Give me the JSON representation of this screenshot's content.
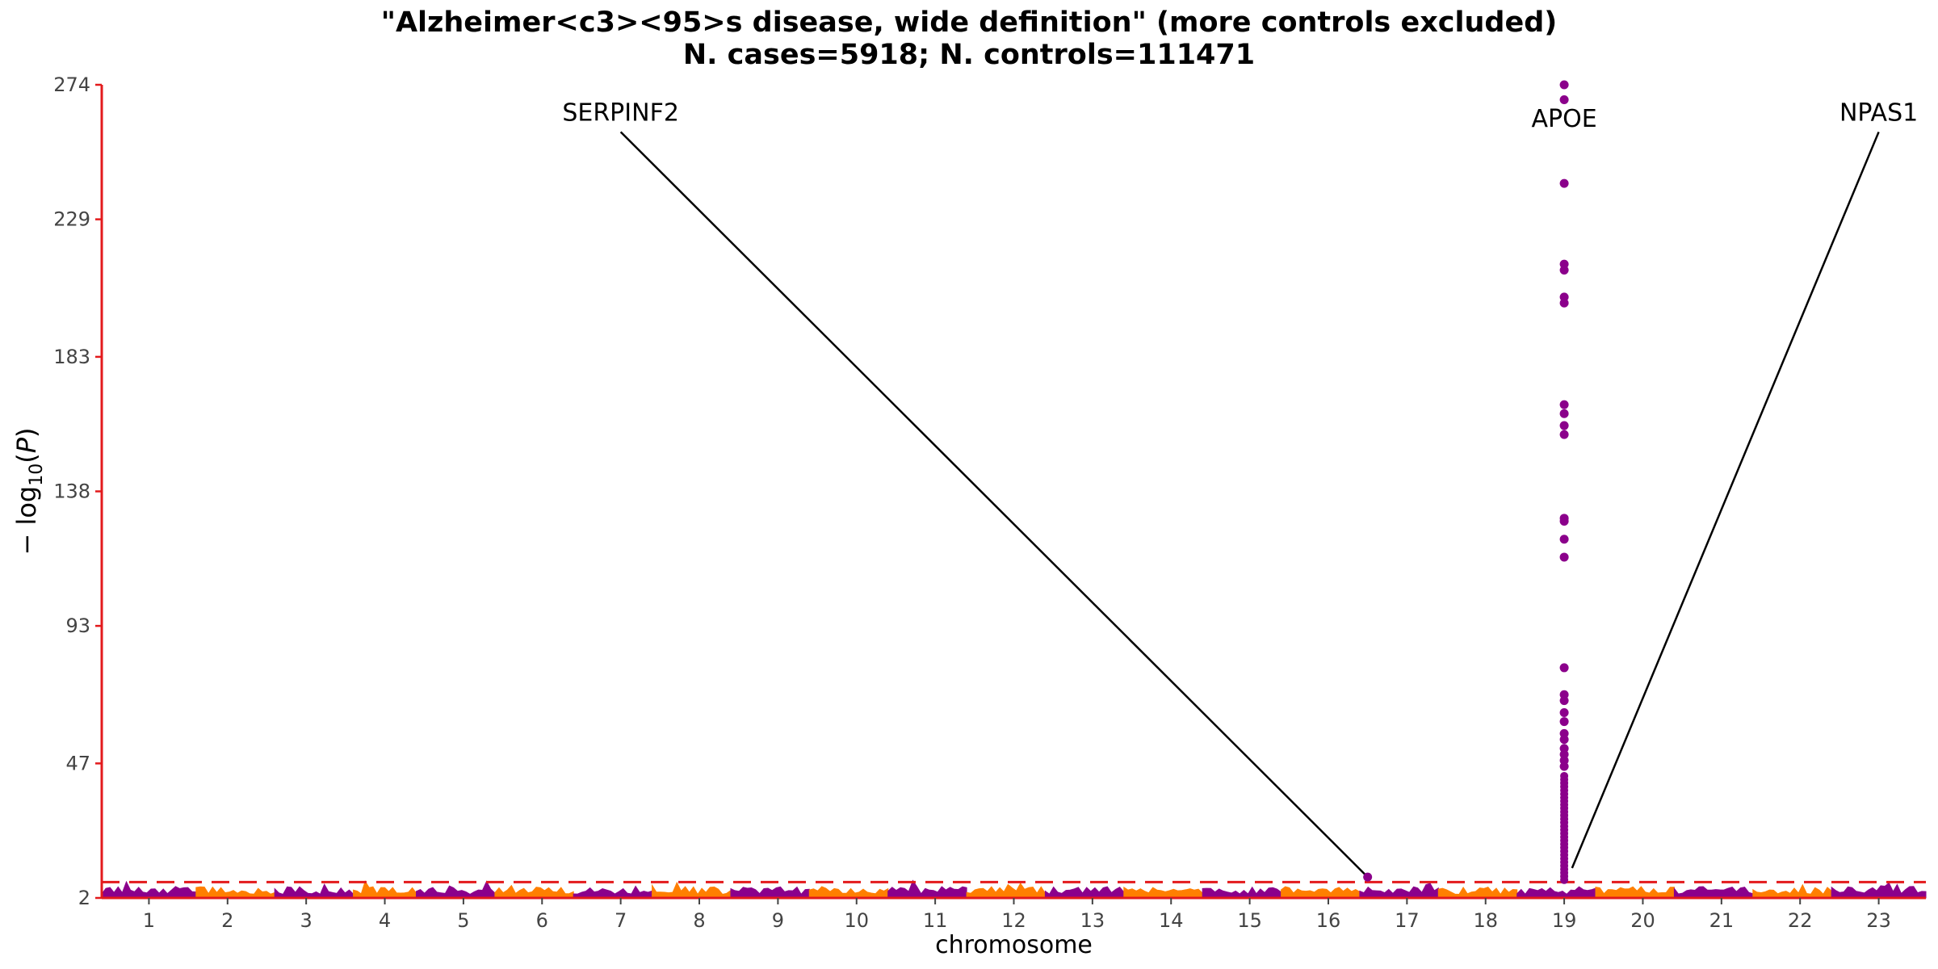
{
  "chart_data": {
    "type": "scatter",
    "title": "\"Alzheimer<c3><95>s disease, wide definition\" (more controls excluded)",
    "subtitle": "N. cases=5918; N. controls=111471",
    "xlabel": "chromosome",
    "ylabel": "−log10(P)",
    "ylabel_parts": {
      "prefix": "− log",
      "sub": "10",
      "open": "(",
      "var": "P",
      "close": ")"
    },
    "y_ticks": [
      "2",
      "47",
      "93",
      "138",
      "183",
      "229",
      "274"
    ],
    "ylim": [
      2,
      274
    ],
    "x_tick_labels": [
      "1",
      "2",
      "3",
      "4",
      "5",
      "6",
      "7",
      "8",
      "9",
      "10",
      "11",
      "12",
      "13",
      "14",
      "15",
      "16",
      "17",
      "18",
      "19",
      "20",
      "21",
      "22",
      "23"
    ],
    "chromosome_x": [
      1,
      2,
      3,
      4,
      5,
      6,
      7,
      8,
      9,
      10,
      11,
      12,
      13,
      14,
      15,
      16,
      17,
      18,
      19,
      20,
      21,
      22,
      23
    ],
    "chromosome_span": [
      [
        0.4,
        1.6
      ],
      [
        1.6,
        2.6
      ],
      [
        2.6,
        3.6
      ],
      [
        3.6,
        4.4
      ],
      [
        4.4,
        5.4
      ],
      [
        5.4,
        6.4
      ],
      [
        6.4,
        7.4
      ],
      [
        7.4,
        8.4
      ],
      [
        8.4,
        9.4
      ],
      [
        9.4,
        10.4
      ],
      [
        10.4,
        11.4
      ],
      [
        11.4,
        12.4
      ],
      [
        12.4,
        13.4
      ],
      [
        13.4,
        14.4
      ],
      [
        14.4,
        15.4
      ],
      [
        15.4,
        16.4
      ],
      [
        16.4,
        17.4
      ],
      [
        17.4,
        18.4
      ],
      [
        18.4,
        19.4
      ],
      [
        19.4,
        20.4
      ],
      [
        20.4,
        21.4
      ],
      [
        21.4,
        22.4
      ],
      [
        22.4,
        23.6
      ]
    ],
    "significance_threshold": 7.3,
    "colors": {
      "odd": "#8B008B",
      "even": "#FF7F00",
      "threshold": "#E31A1C",
      "axis": "#E31A1C"
    },
    "highlight_points": [
      {
        "x": 19.0,
        "y": 274
      },
      {
        "x": 19.0,
        "y": 269
      },
      {
        "x": 19.0,
        "y": 241
      },
      {
        "x": 19.0,
        "y": 214
      },
      {
        "x": 19.0,
        "y": 212
      },
      {
        "x": 19.0,
        "y": 203
      },
      {
        "x": 19.0,
        "y": 201
      },
      {
        "x": 19.0,
        "y": 167
      },
      {
        "x": 19.0,
        "y": 164
      },
      {
        "x": 19.0,
        "y": 160
      },
      {
        "x": 19.0,
        "y": 157
      },
      {
        "x": 19.0,
        "y": 129
      },
      {
        "x": 19.0,
        "y": 128
      },
      {
        "x": 19.0,
        "y": 122
      },
      {
        "x": 19.0,
        "y": 116
      },
      {
        "x": 19.0,
        "y": 79
      },
      {
        "x": 19.0,
        "y": 70
      },
      {
        "x": 19.0,
        "y": 68
      },
      {
        "x": 19.0,
        "y": 64
      },
      {
        "x": 19.0,
        "y": 61
      },
      {
        "x": 19.0,
        "y": 57
      },
      {
        "x": 19.0,
        "y": 55
      },
      {
        "x": 19.0,
        "y": 52
      },
      {
        "x": 19.0,
        "y": 50
      },
      {
        "x": 19.0,
        "y": 48
      },
      {
        "x": 19.0,
        "y": 46
      },
      {
        "x": 16.5,
        "y": 9
      }
    ],
    "annotations": [
      {
        "label": "SERPINF2",
        "point": {
          "x": 16.5,
          "y": 9
        },
        "text_x": 7.0,
        "text_y": 262
      },
      {
        "label": "APOE",
        "point": {
          "x": 19.0,
          "y": 274
        },
        "text_x": 19.0,
        "text_y": 260
      },
      {
        "label": "NPAS1",
        "point": {
          "x": 19.1,
          "y": 12
        },
        "text_x": 23.0,
        "text_y": 262
      }
    ]
  }
}
